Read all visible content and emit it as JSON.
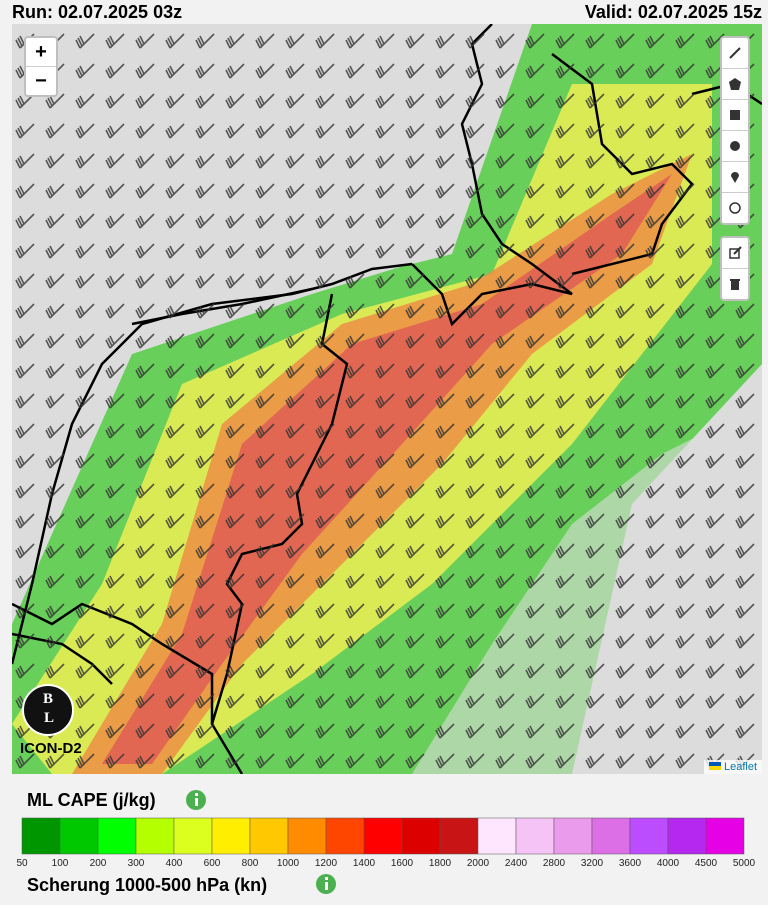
{
  "header": {
    "run": "Run: 02.07.2025 03z",
    "valid": "Valid: 02.07.2025 15z"
  },
  "map": {
    "zoom_in": "+",
    "zoom_out": "−",
    "logo_top": "B",
    "logo_bottom": "L",
    "model": "ICON-D2",
    "attribution": "Leaflet"
  },
  "legend": {
    "title": "ML CAPE (j/kg)",
    "labels": [
      "50",
      "100",
      "200",
      "300",
      "400",
      "600",
      "800",
      "1000",
      "1200",
      "1400",
      "1600",
      "1800",
      "2000",
      "2400",
      "2800",
      "3200",
      "3600",
      "4000",
      "4500",
      "5000"
    ],
    "colors": [
      "#009600",
      "#00c800",
      "#00ff00",
      "#b4ff00",
      "#dcff20",
      "#ffee00",
      "#ffc800",
      "#ff8c00",
      "#ff4600",
      "#ff0000",
      "#dc0000",
      "#c81414",
      "#ffe6ff",
      "#f5c3f5",
      "#eb9beb",
      "#dc6ee6",
      "#bb4dff",
      "#b428f0",
      "#e600e6"
    ],
    "second_title": "Scherung 1000-500 hPa (kn)"
  }
}
